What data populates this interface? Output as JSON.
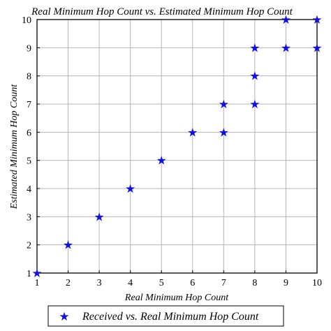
{
  "chart_data": {
    "type": "scatter",
    "title": "Real Minimum Hop Count vs. Estimated Minimum Hop Count",
    "xlabel": "Real Minimum Hop Count",
    "ylabel": "Estimated Minimum Hop Count",
    "xlim": [
      1,
      10
    ],
    "ylim": [
      1,
      10
    ],
    "xticks": [
      "1",
      "2",
      "3",
      "4",
      "5",
      "6",
      "7",
      "8",
      "9",
      "10"
    ],
    "yticks": [
      "1",
      "2",
      "3",
      "4",
      "5",
      "6",
      "7",
      "8",
      "9",
      "10"
    ],
    "grid": true,
    "legend_position": "bottom",
    "series": [
      {
        "name": "Received vs. Real Minimum Hop Count",
        "marker": "star-icon",
        "color": "#1010e0",
        "x": [
          1,
          2,
          3,
          4,
          5,
          6,
          7,
          7,
          8,
          8,
          8,
          9,
          9,
          10,
          10
        ],
        "y": [
          1,
          2,
          3,
          4,
          5,
          6,
          6,
          7,
          7,
          8,
          9,
          9,
          10,
          9,
          10
        ]
      }
    ]
  }
}
